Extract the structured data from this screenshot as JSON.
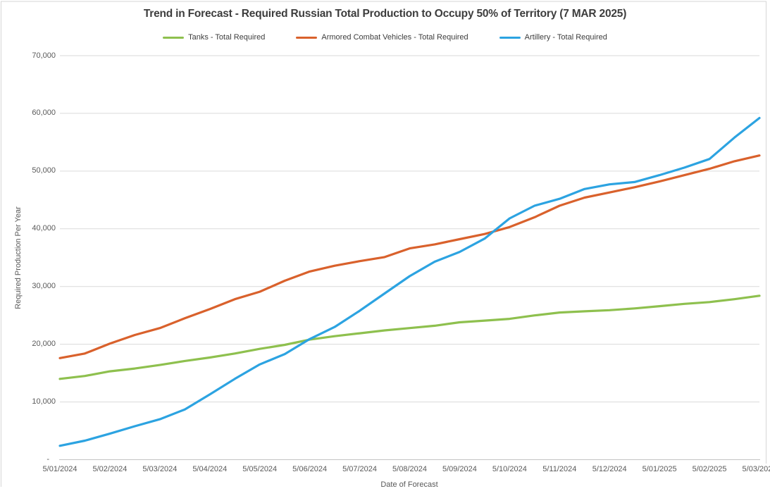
{
  "title": "Trend in Forecast - Required Russian Total Production to Occupy 50% of Territory (7 MAR 2025)",
  "legend": [
    {
      "label": "Tanks - Total Required",
      "color": "#8EC04E"
    },
    {
      "label": "Armored Combat Vehicles - Total Required",
      "color": "#D9612C"
    },
    {
      "label": "Artillery - Total Required",
      "color": "#2CA3E1"
    }
  ],
  "y_axis": {
    "title": "Required Production Per Year",
    "tick_labels": [
      "-",
      "10,000",
      "20,000",
      "30,000",
      "40,000",
      "50,000",
      "60,000",
      "70,000"
    ],
    "min": 0,
    "max": 70000,
    "step": 10000
  },
  "x_axis": {
    "title": "Date of Forecast",
    "tick_labels": [
      "5/01/2024",
      "5/02/2024",
      "5/03/2024",
      "5/04/2024",
      "5/05/2024",
      "5/06/2024",
      "5/07/2024",
      "5/08/2024",
      "5/09/2024",
      "5/10/2024",
      "5/11/2024",
      "5/12/2024",
      "5/01/2025",
      "5/02/2025",
      "5/03/2025"
    ]
  },
  "chart_data": {
    "type": "line",
    "title": "Trend in Forecast - Required Russian Total Production to Occupy 50% of Territory (7 MAR 2025)",
    "xlabel": "Date of Forecast",
    "ylabel": "Required Production Per Year",
    "ylim": [
      0,
      70000
    ],
    "grid": "horizontal",
    "legend_position": "top",
    "x_tick_labels": [
      "5/01/2024",
      "5/02/2024",
      "5/03/2024",
      "5/04/2024",
      "5/05/2024",
      "5/06/2024",
      "5/07/2024",
      "5/08/2024",
      "5/09/2024",
      "5/10/2024",
      "5/11/2024",
      "5/12/2024",
      "5/01/2025",
      "5/02/2025",
      "5/03/2025"
    ],
    "x_months_since_first_tick": [
      0,
      0.5,
      1,
      1.5,
      2,
      2.5,
      3,
      3.5,
      4,
      4.5,
      5,
      5.5,
      6,
      6.5,
      7,
      7.5,
      8,
      8.5,
      9,
      9.5,
      10,
      10.5,
      11,
      11.5,
      12,
      12.5,
      13,
      13.5,
      14
    ],
    "series": [
      {
        "name": "Tanks - Total Required",
        "color": "#8EC04E",
        "values": [
          14000,
          14500,
          15300,
          15800,
          16400,
          17100,
          17700,
          18400,
          19200,
          19900,
          20800,
          21400,
          21900,
          22400,
          22800,
          23200,
          23800,
          24100,
          24400,
          25000,
          25500,
          25700,
          25900,
          26200,
          26600,
          27000,
          27300,
          27800,
          28400
        ]
      },
      {
        "name": "Armored Combat Vehicles - Total Required",
        "color": "#D9612C",
        "values": [
          17600,
          18400,
          20100,
          21600,
          22800,
          24500,
          26100,
          27800,
          29100,
          31000,
          32600,
          33600,
          34400,
          35100,
          36600,
          37300,
          38200,
          39100,
          40300,
          42000,
          44000,
          45400,
          46300,
          47200,
          48200,
          49300,
          50400,
          51700,
          52700
        ]
      },
      {
        "name": "Artillery - Total Required",
        "color": "#2CA3E1",
        "values": [
          2400,
          3300,
          4500,
          5800,
          7000,
          8700,
          11300,
          14000,
          16500,
          18300,
          20900,
          23000,
          25800,
          28800,
          31800,
          34300,
          36000,
          38300,
          41800,
          44000,
          45200,
          46900,
          47700,
          48100,
          49300,
          50600,
          52100,
          55800,
          59200
        ]
      }
    ]
  }
}
